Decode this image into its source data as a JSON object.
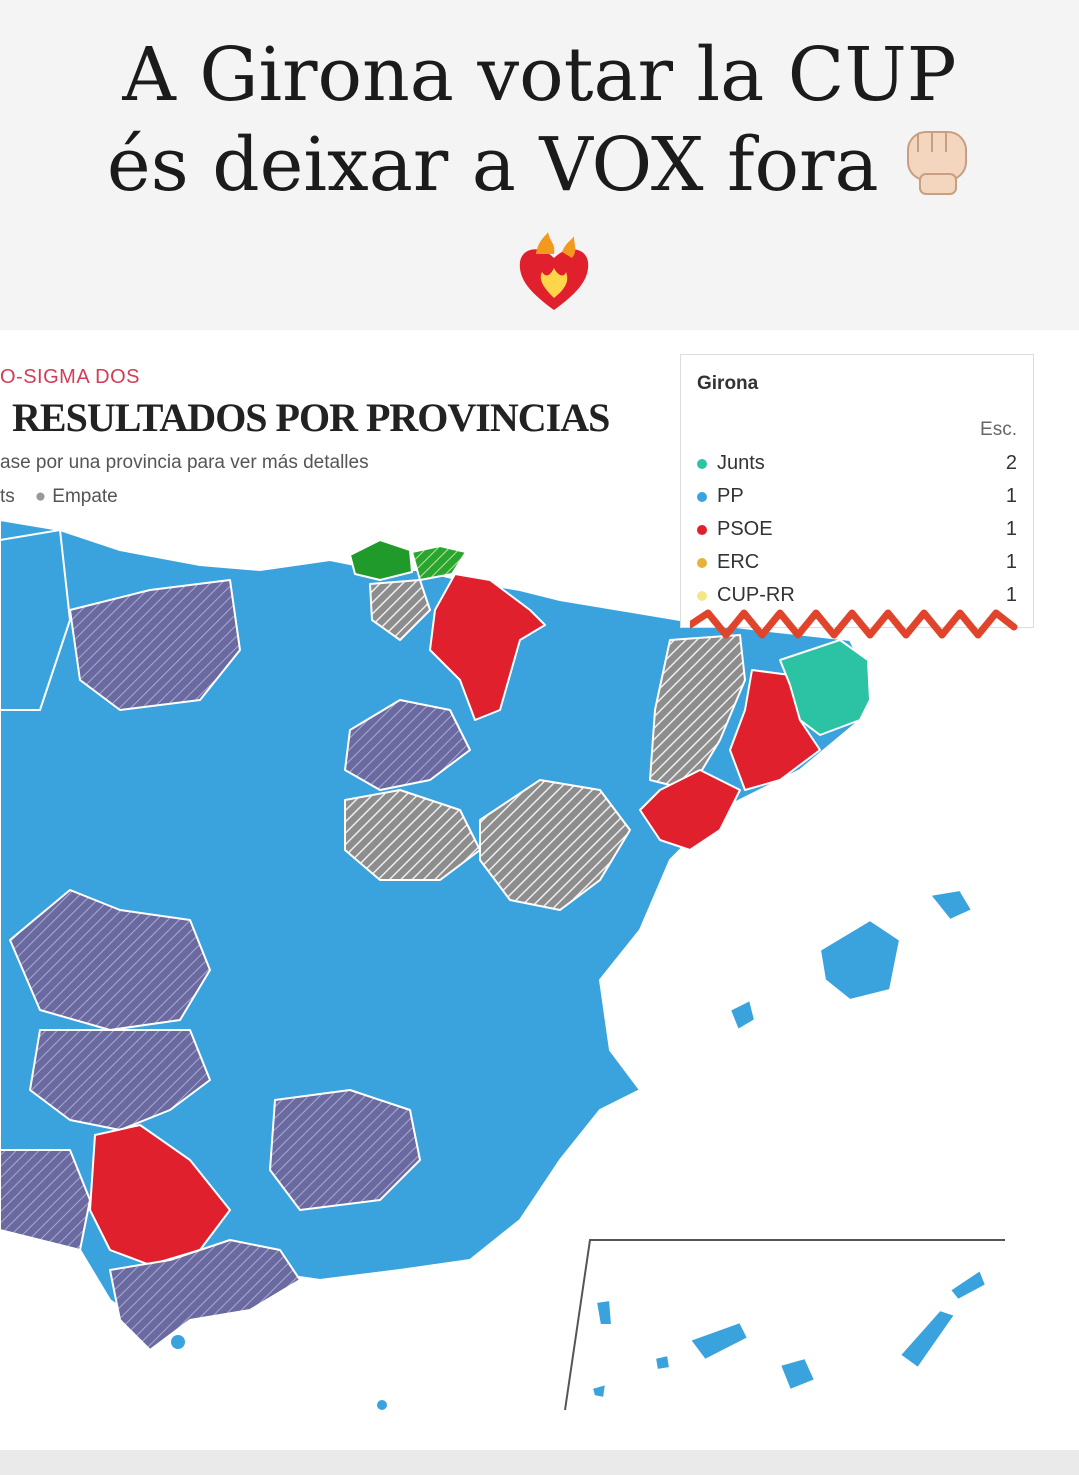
{
  "story": {
    "caption_line1": "A Girona votar la CUP",
    "caption_line2": "és deixar a VOX fora",
    "emoji_fist": "raised-fist-emoji",
    "emoji_heart": "heart-on-fire-emoji"
  },
  "map_card": {
    "kicker": "O-SIGMA DOS",
    "title": "RESULTADOS POR PROVINCIAS",
    "subtitle": "ase por una provincia para ver más detalles",
    "legend_prefix": "ts",
    "legend_tie": "Empate"
  },
  "tooltip": {
    "province": "Girona",
    "seats_header": "Esc.",
    "rows": [
      {
        "party": "Junts",
        "seats": "2",
        "color": "#2cc3a4"
      },
      {
        "party": "PP",
        "seats": "1",
        "color": "#3aa3de"
      },
      {
        "party": "PSOE",
        "seats": "1",
        "color": "#e0202c"
      },
      {
        "party": "ERC",
        "seats": "1",
        "color": "#e8b23a"
      },
      {
        "party": "CUP-RR",
        "seats": "1",
        "color": "#f2e88a"
      }
    ]
  },
  "colors": {
    "pp": "#3aa3de",
    "psoe": "#e0202c",
    "junts": "#2cc3a4",
    "pnv": "#1f9a2b",
    "vox_hatch": "#6a6aa0",
    "tie_hatch": "#9a9a9a",
    "zigzag": "#e0452c"
  }
}
